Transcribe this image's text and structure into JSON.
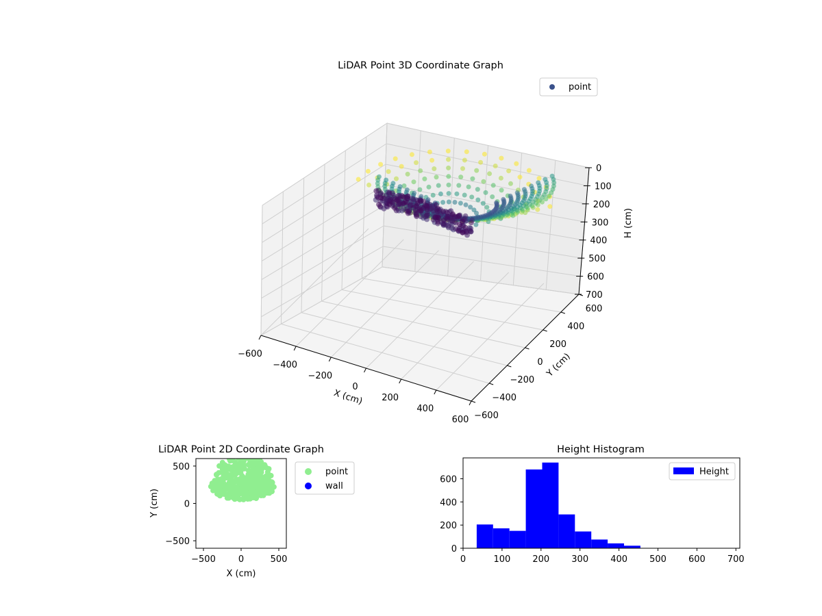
{
  "chart_data": [
    {
      "id": "lidar-3d",
      "type": "scatter",
      "title": "LiDAR Point 3D Coordinate Graph",
      "xlabel": "X (cm)",
      "ylabel": "Y (cm)",
      "zlabel": "H (cm)",
      "xlim": [
        -600,
        600
      ],
      "ylim": [
        -600,
        600
      ],
      "zlim": [
        700,
        0
      ],
      "x_ticks": [
        "−600",
        "−400",
        "−200",
        "0",
        "200",
        "400",
        "600"
      ],
      "y_ticks": [
        "−600",
        "−400",
        "−200",
        "0",
        "200",
        "400",
        "600"
      ],
      "z_ticks": [
        "0",
        "100",
        "200",
        "300",
        "400",
        "500",
        "600",
        "700"
      ],
      "legend": [
        {
          "label": "point",
          "color": "#3b528b"
        }
      ],
      "legend_position": "top-right",
      "colormap": "viridis",
      "grid": true,
      "series": [
        {
          "name": "point",
          "description_free_values": true,
          "x_range": [
            -450,
            480
          ],
          "y_range": [
            -150,
            580
          ],
          "h_range": [
            40,
            460
          ]
        }
      ]
    },
    {
      "id": "lidar-2d",
      "type": "scatter",
      "title": "LiDAR Point 2D Coordinate Graph",
      "xlabel": "X (cm)",
      "ylabel": "Y (cm)",
      "xlim": [
        -600,
        600
      ],
      "ylim": [
        -600,
        600
      ],
      "x_ticks": [
        "−500",
        "0",
        "500"
      ],
      "y_ticks": [
        "−500",
        "0",
        "500"
      ],
      "legend": [
        {
          "label": "point",
          "color": "#90ee90"
        },
        {
          "label": "wall",
          "color": "#0000ff"
        }
      ],
      "legend_position": "outside-right",
      "grid": false
    },
    {
      "id": "height-hist",
      "type": "bar",
      "title": "Height Histogram",
      "xlim": [
        0,
        710
      ],
      "ylim": [
        0,
        780
      ],
      "x_ticks": [
        "0",
        "100",
        "200",
        "300",
        "400",
        "500",
        "600",
        "700"
      ],
      "y_ticks": [
        "0",
        "200",
        "400",
        "600"
      ],
      "legend": [
        {
          "label": "Height",
          "color": "#0000ff"
        }
      ],
      "legend_position": "top-right",
      "grid": false,
      "bins": [
        {
          "from": 35,
          "to": 77,
          "value": 205
        },
        {
          "from": 77,
          "to": 119,
          "value": 172
        },
        {
          "from": 119,
          "to": 161,
          "value": 150
        },
        {
          "from": 161,
          "to": 203,
          "value": 680
        },
        {
          "from": 203,
          "to": 245,
          "value": 740
        },
        {
          "from": 245,
          "to": 287,
          "value": 292
        },
        {
          "from": 287,
          "to": 329,
          "value": 145
        },
        {
          "from": 329,
          "to": 371,
          "value": 75
        },
        {
          "from": 371,
          "to": 413,
          "value": 42
        },
        {
          "from": 413,
          "to": 455,
          "value": 22
        },
        {
          "from": 455,
          "to": 497,
          "value": 0
        },
        {
          "from": 497,
          "to": 539,
          "value": 0
        },
        {
          "from": 539,
          "to": 581,
          "value": 0
        },
        {
          "from": 581,
          "to": 623,
          "value": 0
        },
        {
          "from": 623,
          "to": 665,
          "value": 0
        },
        {
          "from": 665,
          "to": 707,
          "value": 0
        }
      ]
    }
  ]
}
